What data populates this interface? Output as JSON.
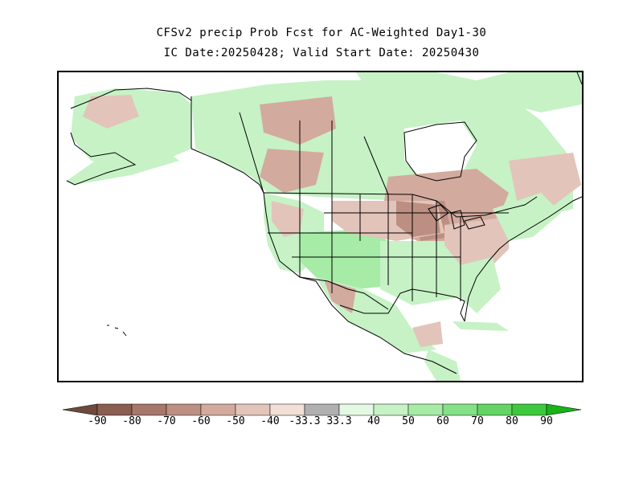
{
  "header": {
    "title_line1": "CFSv2 precip Prob Fcst for AC-Weighted Day1-30",
    "title_line2": "IC Date:20250428; Valid Start Date: 20250430"
  },
  "map": {
    "region": "North America",
    "ocean_color": "#ffffff",
    "land_neutral_color": "#ffffff",
    "boundary_color": "#000000"
  },
  "legend": {
    "tick_labels": [
      "-90",
      "-80",
      "-70",
      "-60",
      "-50",
      "-40",
      "-33.3",
      "33.3",
      "40",
      "50",
      "60",
      "70",
      "80",
      "90"
    ],
    "bins": [
      {
        "color": "#6e4a3c"
      },
      {
        "color": "#8a5e50"
      },
      {
        "color": "#a6776a"
      },
      {
        "color": "#bc8f82"
      },
      {
        "color": "#d3aa9e"
      },
      {
        "color": "#e3c4ba"
      },
      {
        "color": "#f3ded8"
      },
      {
        "color": "#b0b0b0"
      },
      {
        "color": "#e4f9e4"
      },
      {
        "color": "#c6f2c6"
      },
      {
        "color": "#a6eba6"
      },
      {
        "color": "#86e086"
      },
      {
        "color": "#64d464"
      },
      {
        "color": "#3ec83e"
      },
      {
        "color": "#17b317"
      }
    ]
  }
}
